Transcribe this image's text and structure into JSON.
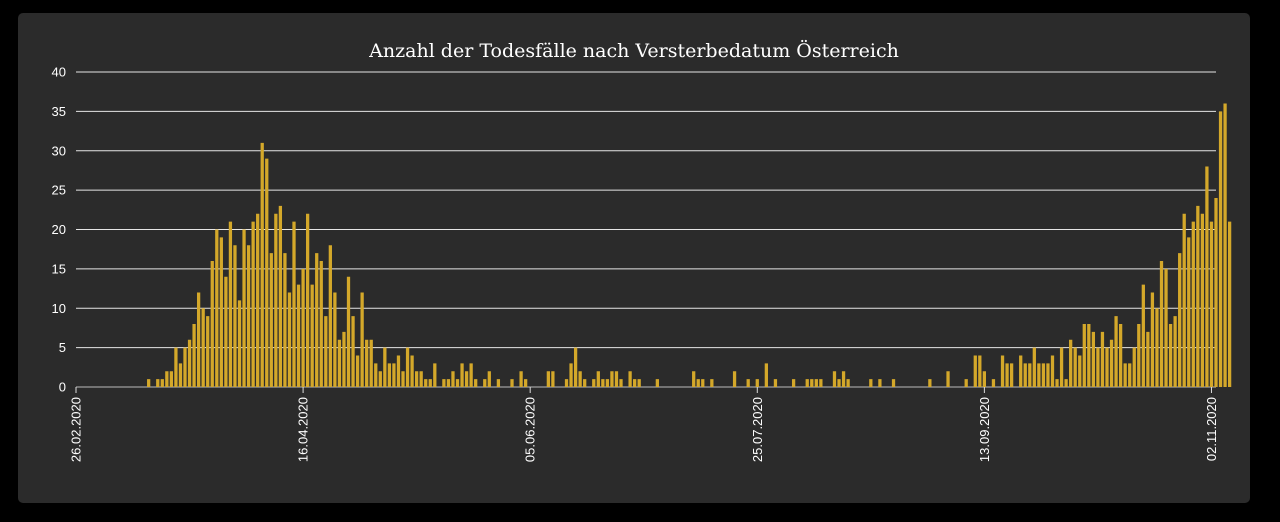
{
  "chart_data": {
    "type": "bar",
    "title": "Anzahl der Todesfälle nach Versterbedatum Österreich",
    "xlabel": "",
    "ylabel": "",
    "ylim": [
      0,
      40
    ],
    "y_ticks": [
      0,
      5,
      10,
      15,
      20,
      25,
      30,
      35,
      40
    ],
    "x_tick_labels": [
      "26.02.2020",
      "16.04.2020",
      "05.06.2020",
      "25.07.2020",
      "13.09.2020",
      "02.11.2020"
    ],
    "x_start": "2020-02-26",
    "x_end": "2020-11-03",
    "grid": true,
    "bar_color": "#d4a82a",
    "values": [
      0,
      0,
      0,
      0,
      0,
      0,
      0,
      0,
      0,
      0,
      0,
      0,
      0,
      0,
      0,
      0,
      1,
      0,
      1,
      1,
      2,
      2,
      5,
      3,
      5,
      6,
      8,
      12,
      10,
      9,
      16,
      20,
      19,
      14,
      21,
      18,
      11,
      20,
      18,
      21,
      22,
      31,
      29,
      17,
      22,
      23,
      17,
      12,
      21,
      13,
      15,
      22,
      13,
      17,
      16,
      9,
      18,
      12,
      6,
      7,
      14,
      9,
      4,
      12,
      6,
      6,
      3,
      2,
      5,
      3,
      3,
      4,
      2,
      5,
      4,
      2,
      2,
      1,
      1,
      3,
      0,
      1,
      1,
      2,
      1,
      3,
      2,
      3,
      1,
      0,
      1,
      2,
      0,
      1,
      0,
      0,
      1,
      0,
      2,
      1,
      0,
      0,
      0,
      0,
      2,
      2,
      0,
      0,
      1,
      3,
      5,
      2,
      1,
      0,
      1,
      2,
      1,
      1,
      2,
      2,
      1,
      0,
      2,
      1,
      1,
      0,
      0,
      0,
      1,
      0,
      0,
      0,
      0,
      0,
      0,
      0,
      2,
      1,
      1,
      0,
      1,
      0,
      0,
      0,
      0,
      2,
      0,
      0,
      1,
      0,
      1,
      0,
      3,
      0,
      1,
      0,
      0,
      0,
      1,
      0,
      0,
      1,
      1,
      1,
      1,
      0,
      0,
      2,
      1,
      2,
      1,
      0,
      0,
      0,
      0,
      1,
      0,
      1,
      0,
      0,
      1,
      0,
      0,
      0,
      0,
      0,
      0,
      0,
      1,
      0,
      0,
      0,
      2,
      0,
      0,
      0,
      1,
      0,
      4,
      4,
      2,
      0,
      1,
      0,
      4,
      3,
      3,
      0,
      4,
      3,
      3,
      5,
      3,
      3,
      3,
      4,
      1,
      5,
      1,
      6,
      5,
      4,
      8,
      8,
      7,
      5,
      7,
      5,
      6,
      9,
      8,
      3,
      3,
      5,
      8,
      13,
      7,
      12,
      10,
      16,
      15,
      8,
      9,
      17,
      22,
      19,
      21,
      23,
      22,
      28,
      21,
      24,
      35,
      36,
      21
    ]
  }
}
